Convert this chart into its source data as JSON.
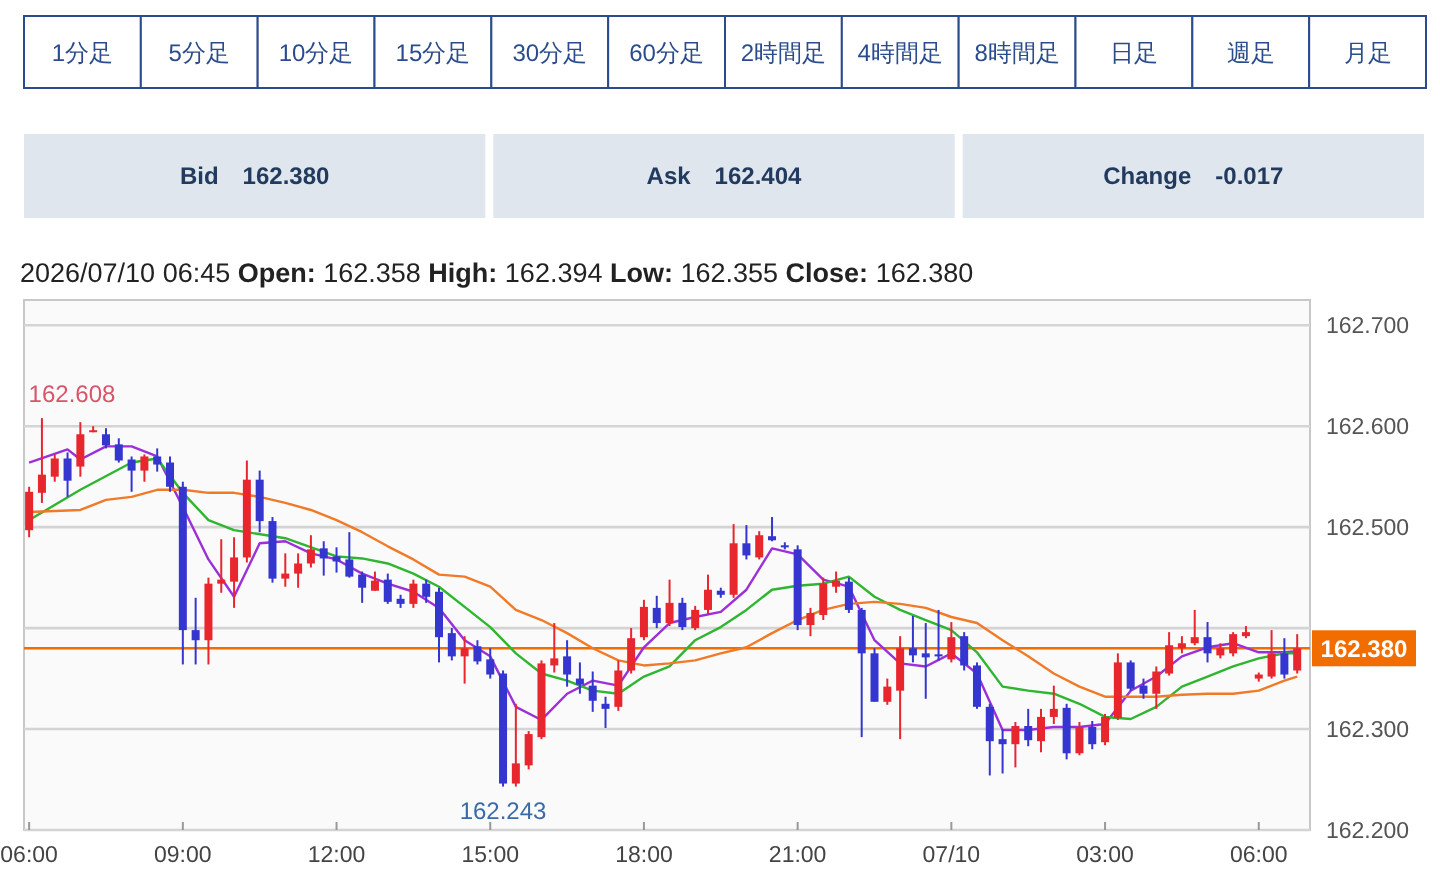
{
  "chart_data": [
    {
      "type": "other",
      "annotations": [
        "1分足",
        "5分足",
        "10分足",
        "15分足",
        "30分足",
        "60分足",
        "2時間足",
        "4時間足",
        "8時間足",
        "日足",
        "週足",
        "月足"
      ]
    },
    {
      "type": "other",
      "annotations": [
        "Bid　162.380",
        "Ask　162.404",
        "Change　-0.017"
      ]
    },
    {
      "type": "candlestick",
      "title": "2026/07/10 06:45  Open: 162.358  High: 162.394  Low: 162.355  Close: 162.380",
      "x": [
        "2026-07-09T06:00",
        "2026-07-09T06:15",
        "2026-07-09T06:30",
        "2026-07-09T06:45",
        "2026-07-09T07:00",
        "2026-07-09T07:15",
        "2026-07-09T07:30",
        "2026-07-09T07:45",
        "2026-07-09T08:00",
        "2026-07-09T08:15",
        "2026-07-09T08:30",
        "2026-07-09T08:45",
        "2026-07-09T09:00",
        "2026-07-09T09:15",
        "2026-07-09T09:30",
        "2026-07-09T09:45",
        "2026-07-09T10:00",
        "2026-07-09T10:15",
        "2026-07-09T10:30",
        "2026-07-09T10:45",
        "2026-07-09T11:00",
        "2026-07-09T11:15",
        "2026-07-09T11:30",
        "2026-07-09T11:45",
        "2026-07-09T12:00",
        "2026-07-09T12:15",
        "2026-07-09T12:30",
        "2026-07-09T12:45",
        "2026-07-09T13:00",
        "2026-07-09T13:15",
        "2026-07-09T13:30",
        "2026-07-09T13:45",
        "2026-07-09T14:00",
        "2026-07-09T14:15",
        "2026-07-09T14:30",
        "2026-07-09T14:45",
        "2026-07-09T15:00",
        "2026-07-09T15:15",
        "2026-07-09T15:30",
        "2026-07-09T15:45",
        "2026-07-09T16:00",
        "2026-07-09T16:15",
        "2026-07-09T16:30",
        "2026-07-09T16:45",
        "2026-07-09T17:00",
        "2026-07-09T17:15",
        "2026-07-09T17:30",
        "2026-07-09T17:45",
        "2026-07-09T18:00",
        "2026-07-09T18:15",
        "2026-07-09T18:30",
        "2026-07-09T18:45",
        "2026-07-09T19:00",
        "2026-07-09T19:15",
        "2026-07-09T19:30",
        "2026-07-09T19:45",
        "2026-07-09T20:00",
        "2026-07-09T20:15",
        "2026-07-09T20:30",
        "2026-07-09T20:45",
        "2026-07-09T21:00",
        "2026-07-09T21:15",
        "2026-07-09T21:30",
        "2026-07-09T21:45",
        "2026-07-09T22:00",
        "2026-07-09T22:15",
        "2026-07-09T22:30",
        "2026-07-09T22:45",
        "2026-07-09T23:00",
        "2026-07-09T23:15",
        "2026-07-09T23:30",
        "2026-07-09T23:45",
        "2026-07-10T00:00",
        "2026-07-10T00:15",
        "2026-07-10T00:30",
        "2026-07-10T00:45",
        "2026-07-10T01:00",
        "2026-07-10T01:15",
        "2026-07-10T01:30",
        "2026-07-10T01:45",
        "2026-07-10T02:00",
        "2026-07-10T02:15",
        "2026-07-10T02:30",
        "2026-07-10T02:45",
        "2026-07-10T03:00",
        "2026-07-10T03:15",
        "2026-07-10T03:30",
        "2026-07-10T03:45",
        "2026-07-10T04:00",
        "2026-07-10T04:15",
        "2026-07-10T04:30",
        "2026-07-10T04:45",
        "2026-07-10T05:00",
        "2026-07-10T05:15",
        "2026-07-10T05:30",
        "2026-07-10T05:45",
        "2026-07-10T06:00",
        "2026-07-10T06:15",
        "2026-07-10T06:30",
        "2026-07-10T06:45"
      ],
      "ohlc": [
        [
          162.497,
          162.54,
          162.49,
          162.535
        ],
        [
          162.534,
          162.608,
          162.524,
          162.552
        ],
        [
          162.55,
          162.572,
          162.545,
          162.568
        ],
        [
          162.568,
          162.574,
          162.53,
          162.546
        ],
        [
          162.56,
          162.604,
          162.55,
          162.592
        ],
        [
          162.594,
          162.6,
          162.594,
          162.596
        ],
        [
          162.592,
          162.598,
          162.578,
          162.581
        ],
        [
          162.582,
          162.588,
          162.564,
          162.566
        ],
        [
          162.567,
          162.57,
          162.535,
          162.556
        ],
        [
          162.556,
          162.572,
          162.545,
          162.57
        ],
        [
          162.57,
          162.578,
          162.555,
          162.562
        ],
        [
          162.564,
          162.57,
          162.535,
          162.54
        ],
        [
          162.54,
          162.545,
          162.364,
          162.398
        ],
        [
          162.398,
          162.43,
          162.364,
          162.388
        ],
        [
          162.388,
          162.45,
          162.364,
          162.444
        ],
        [
          162.444,
          162.488,
          162.435,
          162.448
        ],
        [
          162.446,
          162.49,
          162.42,
          162.47
        ],
        [
          162.47,
          162.566,
          162.465,
          162.547
        ],
        [
          162.547,
          162.556,
          162.495,
          162.506
        ],
        [
          162.506,
          162.51,
          162.445,
          162.449
        ],
        [
          162.449,
          162.474,
          162.441,
          162.454
        ],
        [
          162.454,
          162.474,
          162.44,
          162.464
        ],
        [
          162.464,
          162.492,
          162.46,
          162.478
        ],
        [
          162.479,
          162.486,
          162.452,
          162.469
        ],
        [
          162.471,
          162.48,
          162.455,
          162.466
        ],
        [
          162.468,
          162.495,
          162.45,
          162.451
        ],
        [
          162.453,
          162.456,
          162.425,
          162.44
        ],
        [
          162.437,
          162.456,
          162.437,
          162.447
        ],
        [
          162.448,
          162.454,
          162.424,
          162.426
        ],
        [
          162.429,
          162.433,
          162.42,
          162.424
        ],
        [
          162.424,
          162.448,
          162.42,
          162.444
        ],
        [
          162.444,
          162.448,
          162.425,
          162.431
        ],
        [
          162.436,
          162.44,
          162.366,
          162.391
        ],
        [
          162.395,
          162.4,
          162.368,
          162.372
        ],
        [
          162.372,
          162.392,
          162.345,
          162.38
        ],
        [
          162.382,
          162.388,
          162.364,
          162.367
        ],
        [
          162.369,
          162.38,
          162.35,
          162.354
        ],
        [
          162.355,
          162.358,
          162.243,
          162.246
        ],
        [
          162.246,
          162.325,
          162.243,
          162.266
        ],
        [
          162.264,
          162.298,
          162.26,
          162.295
        ],
        [
          162.292,
          162.368,
          162.29,
          162.365
        ],
        [
          162.363,
          162.405,
          162.356,
          162.37
        ],
        [
          162.372,
          162.388,
          162.342,
          162.354
        ],
        [
          162.35,
          162.366,
          162.335,
          162.344
        ],
        [
          162.343,
          162.357,
          162.317,
          162.328
        ],
        [
          162.325,
          162.332,
          162.301,
          162.32
        ],
        [
          162.322,
          162.368,
          162.318,
          162.358
        ],
        [
          162.358,
          162.4,
          162.355,
          162.39
        ],
        [
          162.391,
          162.428,
          162.388,
          162.421
        ],
        [
          162.42,
          162.432,
          162.4,
          162.405
        ],
        [
          162.405,
          162.448,
          162.402,
          162.425
        ],
        [
          162.425,
          162.43,
          162.398,
          162.401
        ],
        [
          162.4,
          162.422,
          162.398,
          162.418
        ],
        [
          162.418,
          162.453,
          162.414,
          162.438
        ],
        [
          162.437,
          162.44,
          162.43,
          162.433
        ],
        [
          162.433,
          162.503,
          162.43,
          162.484
        ],
        [
          162.484,
          162.502,
          162.468,
          162.472
        ],
        [
          162.47,
          162.496,
          162.468,
          162.492
        ],
        [
          162.491,
          162.51,
          162.486,
          162.487
        ],
        [
          162.482,
          162.485,
          162.478,
          162.48
        ],
        [
          162.478,
          162.482,
          162.398,
          162.403
        ],
        [
          162.403,
          162.42,
          162.392,
          162.415
        ],
        [
          162.413,
          162.45,
          162.408,
          162.444
        ],
        [
          162.441,
          162.456,
          162.435,
          162.447
        ],
        [
          162.446,
          162.45,
          162.415,
          162.418
        ],
        [
          162.418,
          162.42,
          162.292,
          162.375
        ],
        [
          162.375,
          162.38,
          162.327,
          162.327
        ],
        [
          162.327,
          162.35,
          162.324,
          162.342
        ],
        [
          162.338,
          162.392,
          162.29,
          162.38
        ],
        [
          162.38,
          162.412,
          162.366,
          162.373
        ],
        [
          162.375,
          162.405,
          162.33,
          162.371
        ],
        [
          162.374,
          162.418,
          162.368,
          162.372
        ],
        [
          162.369,
          162.406,
          162.366,
          162.391
        ],
        [
          162.392,
          162.396,
          162.358,
          162.363
        ],
        [
          162.363,
          162.366,
          162.32,
          162.322
        ],
        [
          162.322,
          162.325,
          162.254,
          162.288
        ],
        [
          162.29,
          162.3,
          162.256,
          162.285
        ],
        [
          162.285,
          162.307,
          162.262,
          162.303
        ],
        [
          162.303,
          162.32,
          162.283,
          162.289
        ],
        [
          162.288,
          162.32,
          162.277,
          162.312
        ],
        [
          162.312,
          162.343,
          162.305,
          162.32
        ],
        [
          162.321,
          162.325,
          162.27,
          162.276
        ],
        [
          162.276,
          162.307,
          162.274,
          162.302
        ],
        [
          162.302,
          162.308,
          162.28,
          162.285
        ],
        [
          162.287,
          162.315,
          162.284,
          162.312
        ],
        [
          162.311,
          162.375,
          162.309,
          162.366
        ],
        [
          162.366,
          162.368,
          162.338,
          162.34
        ],
        [
          162.343,
          162.35,
          162.33,
          162.335
        ],
        [
          162.335,
          162.362,
          162.32,
          162.357
        ],
        [
          162.355,
          162.396,
          162.353,
          162.383
        ],
        [
          162.38,
          162.392,
          162.375,
          162.385
        ],
        [
          162.385,
          162.418,
          162.383,
          162.391
        ],
        [
          162.391,
          162.406,
          162.366,
          162.375
        ],
        [
          162.373,
          162.385,
          162.37,
          162.38
        ],
        [
          162.375,
          162.396,
          162.372,
          162.394
        ],
        [
          162.392,
          162.402,
          162.39,
          162.396
        ],
        [
          162.35,
          162.356,
          162.347,
          162.354
        ],
        [
          162.352,
          162.398,
          162.35,
          162.375
        ],
        [
          162.375,
          162.39,
          162.35,
          162.354
        ],
        [
          162.358,
          162.394,
          162.355,
          162.38
        ]
      ],
      "series": [
        {
          "type": "line",
          "color": "#9b30d9",
          "x": [
            "2026-07-09T06:00",
            "2026-07-09T06:45",
            "2026-07-09T07:00",
            "2026-07-09T07:30",
            "2026-07-09T08:00",
            "2026-07-09T08:30",
            "2026-07-09T09:00",
            "2026-07-09T09:30",
            "2026-07-09T10:00",
            "2026-07-09T10:30",
            "2026-07-09T11:00",
            "2026-07-09T11:30",
            "2026-07-09T12:00",
            "2026-07-09T12:30",
            "2026-07-09T13:00",
            "2026-07-09T13:30",
            "2026-07-09T14:00",
            "2026-07-09T14:30",
            "2026-07-09T15:00",
            "2026-07-09T15:30",
            "2026-07-09T16:00",
            "2026-07-09T16:30",
            "2026-07-09T17:00",
            "2026-07-09T17:30",
            "2026-07-09T18:00",
            "2026-07-09T18:30",
            "2026-07-09T19:00",
            "2026-07-09T19:30",
            "2026-07-09T20:00",
            "2026-07-09T20:30",
            "2026-07-09T21:00",
            "2026-07-09T21:30",
            "2026-07-09T22:00",
            "2026-07-09T22:30",
            "2026-07-09T23:00",
            "2026-07-09T23:30",
            "2026-07-10T00:00",
            "2026-07-10T00:30",
            "2026-07-10T01:00",
            "2026-07-10T01:30",
            "2026-07-10T02:00",
            "2026-07-10T02:30",
            "2026-07-10T03:00",
            "2026-07-10T03:30",
            "2026-07-10T04:00",
            "2026-07-10T04:30",
            "2026-07-10T05:00",
            "2026-07-10T05:30",
            "2026-07-10T06:00",
            "2026-07-10T06:30",
            "2026-07-10T06:45"
          ],
          "values": [
            162.564,
            162.577,
            162.567,
            162.58,
            162.58,
            162.57,
            162.52,
            162.468,
            162.431,
            162.484,
            162.486,
            162.474,
            162.468,
            162.454,
            162.444,
            162.436,
            162.42,
            162.388,
            162.372,
            162.322,
            162.309,
            162.335,
            162.348,
            162.343,
            162.381,
            162.405,
            162.411,
            162.416,
            162.438,
            162.479,
            162.473,
            162.448,
            162.441,
            162.388,
            162.365,
            162.362,
            162.375,
            162.355,
            162.299,
            162.299,
            162.302,
            162.302,
            162.305,
            162.338,
            162.352,
            162.372,
            162.381,
            162.385,
            162.376,
            162.376,
            162.377
          ]
        },
        {
          "type": "line",
          "color": "#2fb52f",
          "x": [
            "2026-07-09T06:00",
            "2026-07-09T07:00",
            "2026-07-09T08:00",
            "2026-07-09T08:30",
            "2026-07-09T09:00",
            "2026-07-09T09:30",
            "2026-07-09T10:00",
            "2026-07-09T11:00",
            "2026-07-09T12:00",
            "2026-07-09T12:30",
            "2026-07-09T13:00",
            "2026-07-09T13:30",
            "2026-07-09T14:00",
            "2026-07-09T14:30",
            "2026-07-09T15:00",
            "2026-07-09T15:30",
            "2026-07-09T16:00",
            "2026-07-09T16:30",
            "2026-07-09T17:00",
            "2026-07-09T17:30",
            "2026-07-09T18:00",
            "2026-07-09T18:30",
            "2026-07-09T19:00",
            "2026-07-09T19:30",
            "2026-07-09T20:00",
            "2026-07-09T20:30",
            "2026-07-09T21:00",
            "2026-07-09T21:30",
            "2026-07-09T22:00",
            "2026-07-09T22:30",
            "2026-07-09T23:00",
            "2026-07-09T23:30",
            "2026-07-10T00:00",
            "2026-07-10T00:30",
            "2026-07-10T01:00",
            "2026-07-10T01:30",
            "2026-07-10T02:00",
            "2026-07-10T02:30",
            "2026-07-10T03:00",
            "2026-07-10T03:30",
            "2026-07-10T04:00",
            "2026-07-10T04:30",
            "2026-07-10T05:00",
            "2026-07-10T05:30",
            "2026-07-10T06:00",
            "2026-07-10T06:30",
            "2026-07-10T06:45"
          ],
          "values": [
            162.507,
            162.537,
            162.564,
            162.568,
            162.534,
            162.507,
            162.497,
            162.489,
            162.471,
            162.469,
            162.464,
            162.454,
            162.441,
            162.421,
            162.401,
            162.375,
            162.355,
            162.348,
            162.338,
            162.335,
            162.352,
            162.362,
            162.388,
            162.401,
            162.418,
            162.438,
            162.442,
            162.444,
            162.451,
            162.431,
            162.418,
            162.408,
            162.398,
            162.376,
            162.342,
            162.338,
            162.335,
            162.325,
            162.312,
            162.31,
            162.322,
            162.342,
            162.352,
            162.362,
            162.37,
            162.375,
            162.375
          ]
        },
        {
          "type": "line",
          "color": "#f07a28",
          "x": [
            "2026-07-09T06:00",
            "2026-07-09T07:00",
            "2026-07-09T07:30",
            "2026-07-09T08:00",
            "2026-07-09T08:30",
            "2026-07-09T09:00",
            "2026-07-09T09:30",
            "2026-07-09T10:00",
            "2026-07-09T10:30",
            "2026-07-09T11:00",
            "2026-07-09T11:30",
            "2026-07-09T12:00",
            "2026-07-09T12:30",
            "2026-07-09T13:00",
            "2026-07-09T13:30",
            "2026-07-09T14:00",
            "2026-07-09T14:30",
            "2026-07-09T15:00",
            "2026-07-09T15:30",
            "2026-07-09T16:00",
            "2026-07-09T16:30",
            "2026-07-09T17:00",
            "2026-07-09T17:30",
            "2026-07-09T18:00",
            "2026-07-09T18:30",
            "2026-07-09T19:00",
            "2026-07-09T19:30",
            "2026-07-09T20:00",
            "2026-07-09T20:30",
            "2026-07-09T21:00",
            "2026-07-09T21:30",
            "2026-07-09T22:00",
            "2026-07-09T22:30",
            "2026-07-09T23:00",
            "2026-07-09T23:30",
            "2026-07-10T00:00",
            "2026-07-10T00:30",
            "2026-07-10T01:00",
            "2026-07-10T01:30",
            "2026-07-10T02:00",
            "2026-07-10T02:30",
            "2026-07-10T03:00",
            "2026-07-10T03:30",
            "2026-07-10T04:00",
            "2026-07-10T04:30",
            "2026-07-10T05:00",
            "2026-07-10T05:30",
            "2026-07-10T06:00",
            "2026-07-10T06:30",
            "2026-07-10T06:45"
          ],
          "values": [
            162.515,
            162.517,
            162.527,
            162.53,
            162.537,
            162.537,
            162.534,
            162.534,
            162.53,
            162.524,
            162.517,
            162.507,
            162.495,
            162.481,
            162.468,
            162.453,
            162.451,
            162.441,
            162.418,
            162.408,
            162.395,
            162.38,
            162.368,
            162.363,
            162.365,
            162.368,
            162.375,
            162.381,
            162.395,
            162.408,
            162.418,
            162.424,
            162.426,
            162.424,
            162.42,
            162.411,
            162.405,
            162.388,
            162.372,
            162.355,
            162.342,
            162.332,
            162.332,
            162.332,
            162.334,
            162.335,
            162.335,
            162.338,
            162.348,
            162.352
          ]
        }
      ],
      "xlim": [
        "2026-07-09T05:54",
        "2026-07-10T07:00"
      ],
      "ylim": [
        162.2,
        162.725
      ],
      "xticks": [
        {
          "value": "2026-07-09T06:00",
          "label": "06:00"
        },
        {
          "value": "2026-07-09T09:00",
          "label": "09:00"
        },
        {
          "value": "2026-07-09T12:00",
          "label": "12:00"
        },
        {
          "value": "2026-07-09T15:00",
          "label": "15:00"
        },
        {
          "value": "2026-07-09T18:00",
          "label": "18:00"
        },
        {
          "value": "2026-07-09T21:00",
          "label": "21:00"
        },
        {
          "value": "2026-07-10T00:00",
          "label": "07/10"
        },
        {
          "value": "2026-07-10T03:00",
          "label": "03:00"
        },
        {
          "value": "2026-07-10T06:00",
          "label": "06:00"
        }
      ],
      "yticks": [
        {
          "value": 162.2,
          "label": "162.200"
        },
        {
          "value": 162.3,
          "label": "162.300"
        },
        {
          "value": 162.4,
          "label": null
        },
        {
          "value": 162.5,
          "label": "162.500"
        },
        {
          "value": 162.6,
          "label": "162.600"
        },
        {
          "value": 162.7,
          "label": "162.700"
        }
      ],
      "ref_lines": [
        {
          "axis": "y",
          "value": 162.38,
          "label": "162.380",
          "color": "#f26d00"
        }
      ],
      "annotations": [
        {
          "text": "162.608",
          "x": "2026-07-09T06:15",
          "y": 162.608
        },
        {
          "text": "162.243",
          "x": "2026-07-09T15:15",
          "y": 162.243
        }
      ],
      "grid": "y"
    }
  ]
}
